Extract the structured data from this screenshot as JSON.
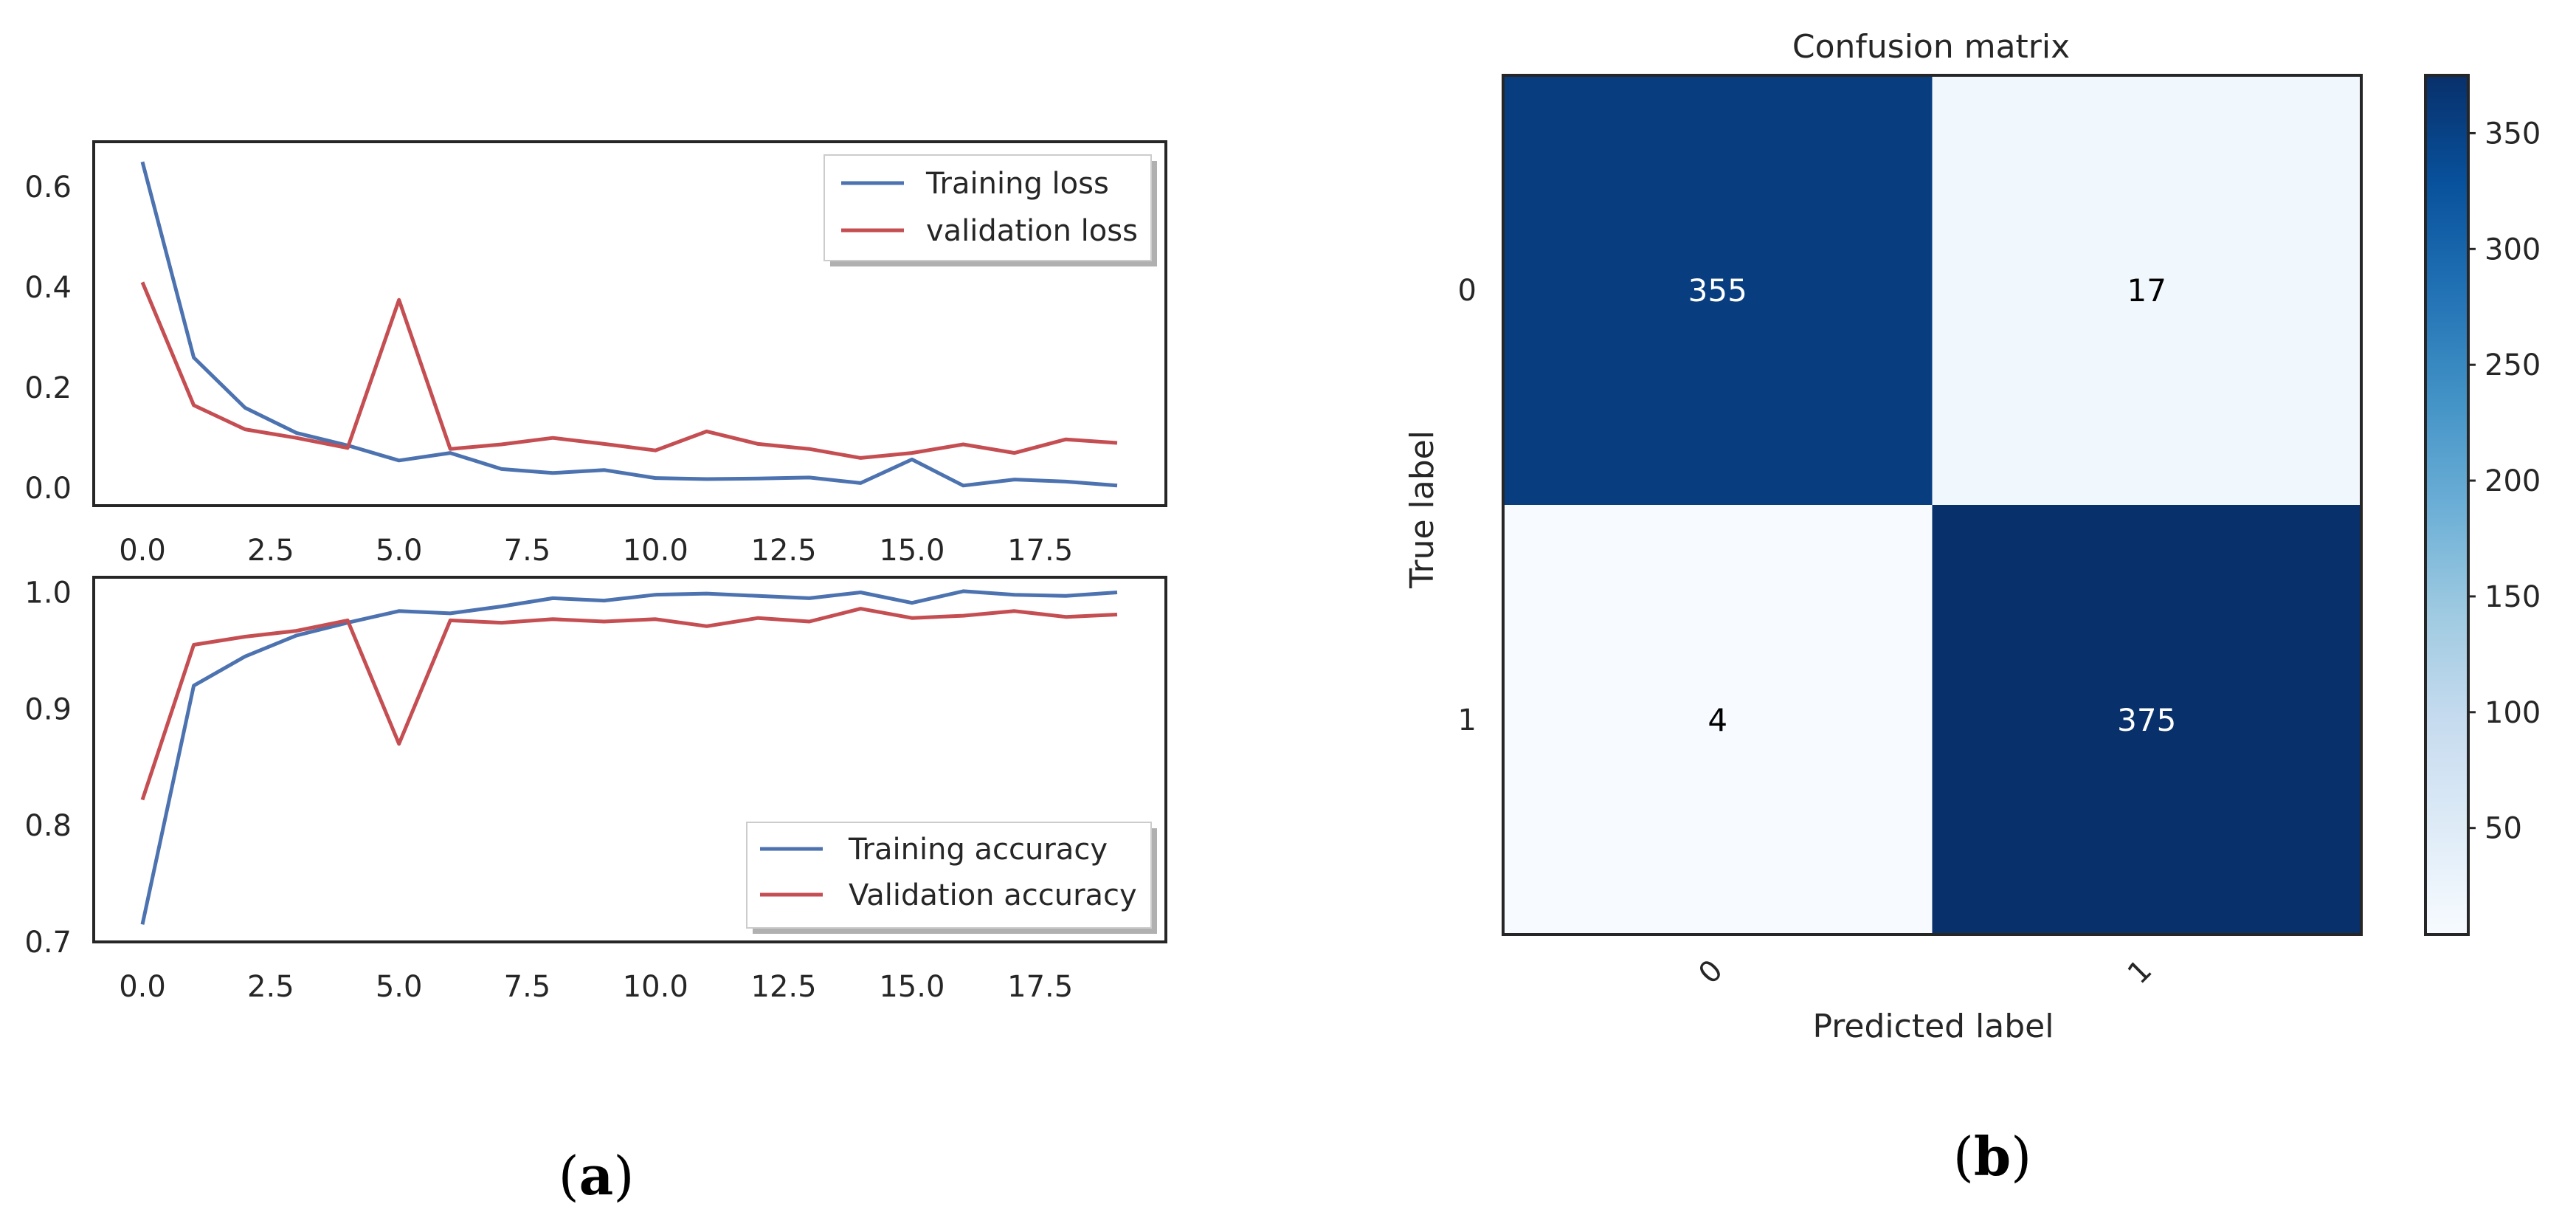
{
  "chart_data": [
    {
      "type": "line",
      "id": "loss-chart",
      "title": "",
      "x": [
        0,
        1,
        2,
        3,
        4,
        5,
        6,
        7,
        8,
        9,
        10,
        11,
        12,
        13,
        14,
        15,
        16,
        17,
        18,
        19
      ],
      "xlim": [
        -0.95,
        19.95
      ],
      "ylim": [
        -0.035,
        0.69
      ],
      "xticks": [
        0.0,
        2.5,
        5.0,
        7.5,
        10.0,
        12.5,
        15.0,
        17.5
      ],
      "xtick_labels": [
        "0.0",
        "2.5",
        "5.0",
        "7.5",
        "10.0",
        "12.5",
        "15.0",
        "17.5"
      ],
      "yticks": [
        0.0,
        0.2,
        0.4,
        0.6
      ],
      "ytick_labels": [
        "0.0",
        "0.2",
        "0.4",
        "0.6"
      ],
      "legend_position": "top-right",
      "series": [
        {
          "name": "Training loss",
          "color": "#4c72b0",
          "values": [
            0.65,
            0.26,
            0.16,
            0.11,
            0.085,
            0.055,
            0.07,
            0.038,
            0.03,
            0.036,
            0.02,
            0.018,
            0.019,
            0.021,
            0.01,
            0.057,
            0.005,
            0.017,
            0.013,
            0.005
          ]
        },
        {
          "name": "validation loss",
          "color": "#c44e52",
          "values": [
            0.41,
            0.165,
            0.117,
            0.1,
            0.08,
            0.375,
            0.078,
            0.087,
            0.1,
            0.088,
            0.075,
            0.113,
            0.088,
            0.078,
            0.06,
            0.07,
            0.087,
            0.07,
            0.097,
            0.09
          ]
        }
      ]
    },
    {
      "type": "line",
      "id": "accuracy-chart",
      "title": "",
      "x": [
        0,
        1,
        2,
        3,
        4,
        5,
        6,
        7,
        8,
        9,
        10,
        11,
        12,
        13,
        14,
        15,
        16,
        17,
        18,
        19
      ],
      "xlim": [
        -0.95,
        19.95
      ],
      "ylim": [
        0.7,
        1.013
      ],
      "xticks": [
        0.0,
        2.5,
        5.0,
        7.5,
        10.0,
        12.5,
        15.0,
        17.5
      ],
      "xtick_labels": [
        "0.0",
        "2.5",
        "5.0",
        "7.5",
        "10.0",
        "12.5",
        "15.0",
        "17.5"
      ],
      "yticks": [
        0.7,
        0.8,
        0.9,
        1.0
      ],
      "ytick_labels": [
        "0.7",
        "0.8",
        "0.9",
        "1.0"
      ],
      "legend_position": "bottom-right",
      "series": [
        {
          "name": "Training accuracy",
          "color": "#4c72b0",
          "values": [
            0.715,
            0.92,
            0.945,
            0.963,
            0.974,
            0.984,
            0.982,
            0.988,
            0.995,
            0.993,
            0.998,
            0.999,
            0.997,
            0.995,
            1.0,
            0.991,
            1.001,
            0.998,
            0.997,
            1.0
          ]
        },
        {
          "name": "Validation accuracy",
          "color": "#c44e52",
          "values": [
            0.822,
            0.955,
            0.962,
            0.967,
            0.976,
            0.87,
            0.976,
            0.974,
            0.977,
            0.975,
            0.977,
            0.971,
            0.978,
            0.975,
            0.986,
            0.978,
            0.98,
            0.984,
            0.979,
            0.981
          ]
        }
      ]
    },
    {
      "type": "heatmap",
      "id": "confusion-matrix",
      "title": "Confusion matrix",
      "xlabel": "Predicted label",
      "ylabel": "True label",
      "row_labels": [
        "0",
        "1"
      ],
      "col_labels": [
        "0",
        "1"
      ],
      "values": [
        [
          355,
          17
        ],
        [
          4,
          375
        ]
      ],
      "colormap": "Blues",
      "colorbar_range": [
        4,
        375
      ],
      "colorbar_ticks": [
        50,
        100,
        150,
        200,
        250,
        300,
        350
      ],
      "colorbar_tick_labels": [
        "50",
        "100",
        "150",
        "200",
        "250",
        "300",
        "350"
      ]
    }
  ],
  "panel_labels": {
    "a": {
      "open": "(",
      "letter": "a",
      "close": ")"
    },
    "b": {
      "open": "(",
      "letter": "b",
      "close": ")"
    }
  }
}
